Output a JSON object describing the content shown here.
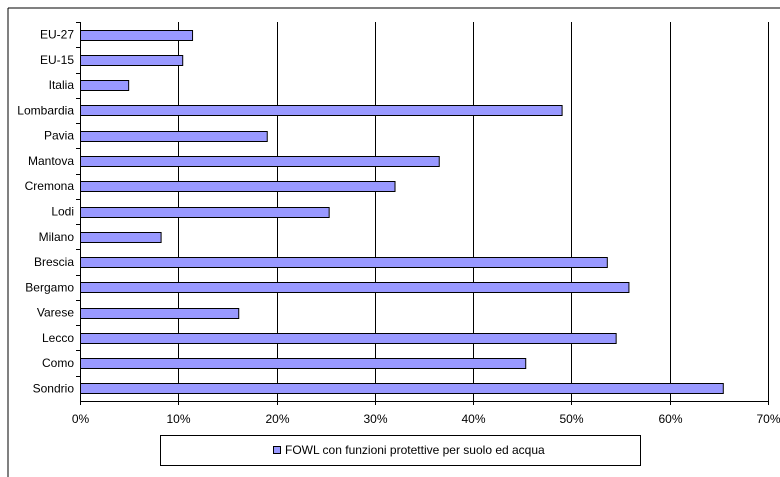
{
  "chart_data": {
    "type": "bar",
    "orientation": "horizontal",
    "categories": [
      "EU-27",
      "EU-15",
      "Italia",
      "Lombardia",
      "Pavia",
      "Mantova",
      "Cremona",
      "Lodi",
      "Milano",
      "Brescia",
      "Bergamo",
      "Varese",
      "Lecco",
      "Como",
      "Sondrio"
    ],
    "series": [
      {
        "name": "FOWL con funzioni protettive per suolo ed acqua",
        "values": [
          11.4,
          10.4,
          4.9,
          49.0,
          19.0,
          36.5,
          32.0,
          25.3,
          8.2,
          53.6,
          55.8,
          16.1,
          54.5,
          45.3,
          65.4
        ]
      }
    ],
    "xlim": [
      0,
      70
    ],
    "xticks": [
      0,
      10,
      20,
      30,
      40,
      50,
      60,
      70
    ],
    "tick_format": "percent",
    "grid": true,
    "legend": "bottom",
    "colors": {
      "bar_fill": "#9999ff",
      "bar_stroke": "#000000",
      "grid": "#000000"
    }
  }
}
